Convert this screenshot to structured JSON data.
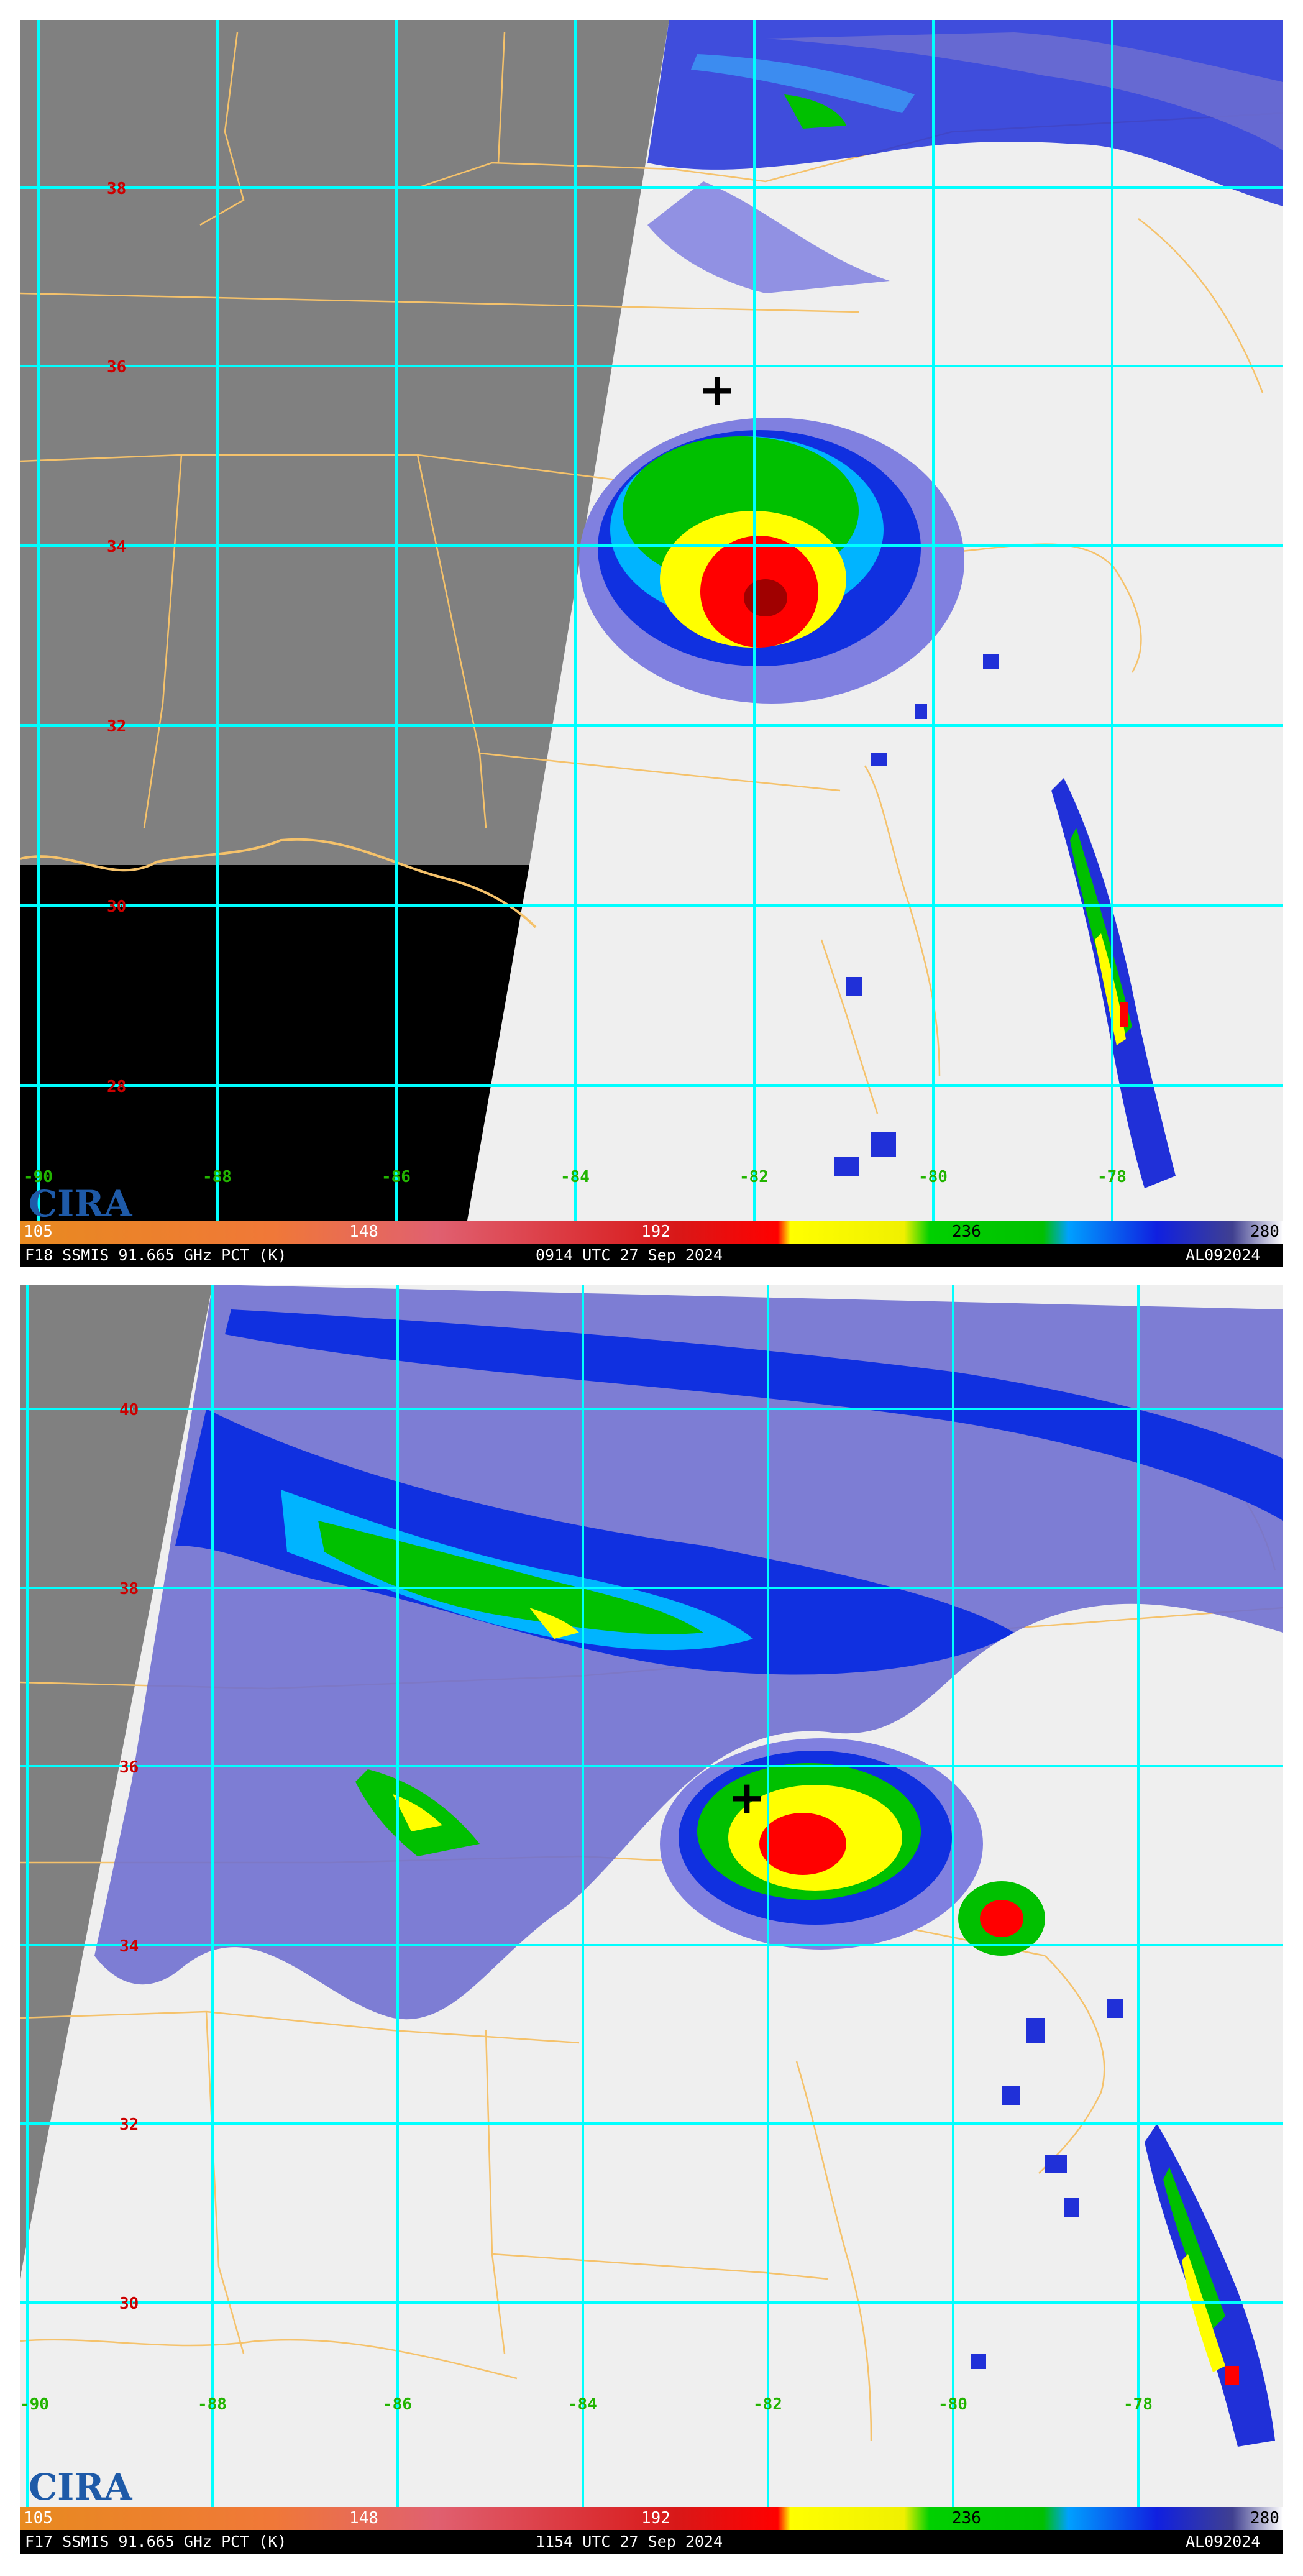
{
  "colors": {
    "land": "#808080",
    "ocean": "#000000",
    "background": "#efefef",
    "grid": "#00ffff",
    "border": "#f5c26b",
    "lat_label": "#cc0000",
    "lon_label": "#22b400",
    "colorscale": [
      "#e07010",
      "#f08030",
      "#e05060",
      "#d02020",
      "#ff0000",
      "#ffff00",
      "#00c000",
      "#1060ff",
      "#000080",
      "#ffffff"
    ]
  },
  "colorbar": {
    "ticks": [
      "105",
      "148",
      "192",
      "236",
      "280"
    ]
  },
  "panels": [
    {
      "id": "top",
      "sensor": "F18 SSMIS 91.665 GHz PCT (K)",
      "time": "0914 UTC 27 Sep 2024",
      "storm": "AL092024",
      "lat_labels": [
        "38",
        "36",
        "34",
        "32",
        "30",
        "28"
      ],
      "lon_labels": [
        "-90",
        "-88",
        "-86",
        "-84",
        "-82",
        "-80",
        "-78"
      ],
      "logo": "CIRA",
      "center_marker": "+"
    },
    {
      "id": "bottom",
      "sensor": "F17 SSMIS 91.665 GHz PCT (K)",
      "time": "1154 UTC 27 Sep 2024",
      "storm": "AL092024",
      "lat_labels": [
        "40",
        "38",
        "36",
        "34",
        "32",
        "30"
      ],
      "lon_labels": [
        "-90",
        "-88",
        "-86",
        "-84",
        "-82",
        "-80",
        "-78"
      ],
      "logo": "CIRA",
      "center_marker": "+"
    }
  ]
}
